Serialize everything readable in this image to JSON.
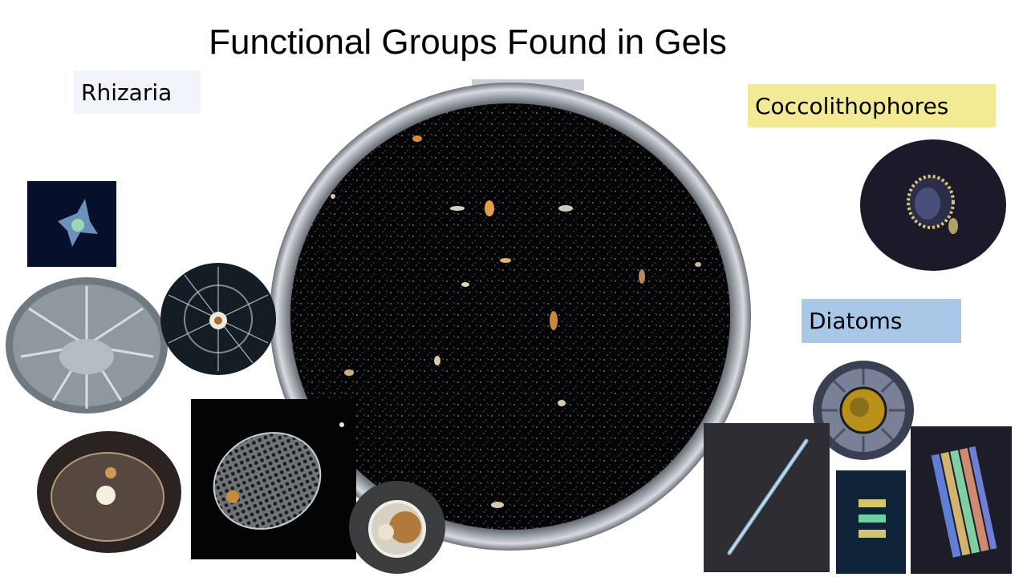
{
  "slide": {
    "title": "Functional Groups Found in Gels",
    "labels": {
      "rhizaria": "Rhizaria",
      "coccolithophores": "Coccolithophores",
      "diatoms": "Diatoms"
    }
  },
  "colors": {
    "background": "#ffffff",
    "rhizaria_label_bg": "#f1f5fb",
    "coccolithophores_label_bg": "#f2ea94",
    "diatoms_label_bg": "#a9c8e8",
    "petri_dish_interior": "#050507"
  }
}
